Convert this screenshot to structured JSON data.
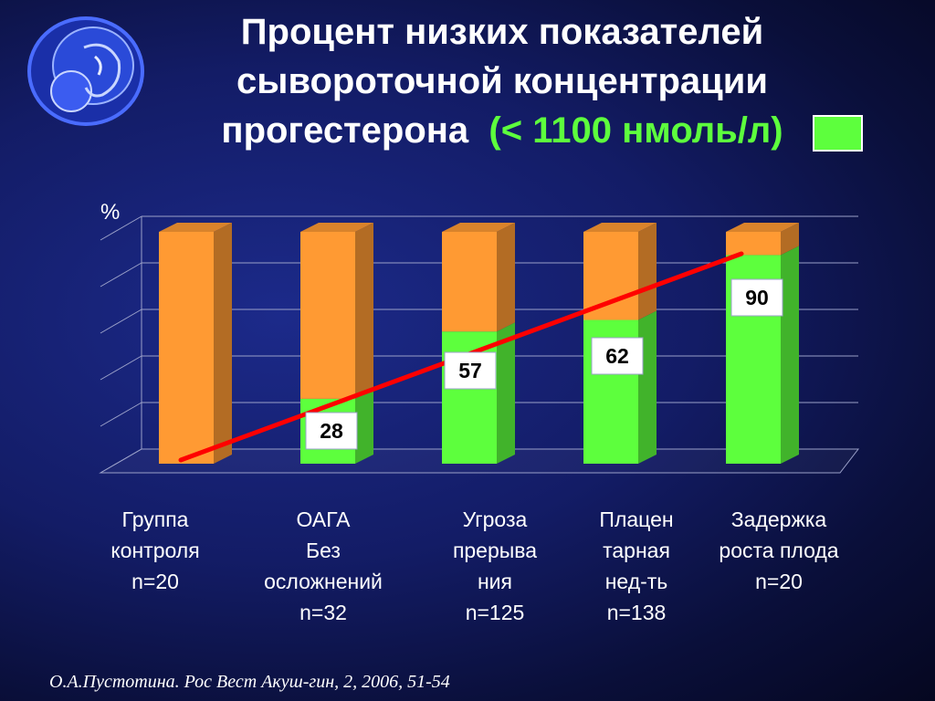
{
  "title": {
    "line1": "Процент низких показателей",
    "line2": "сывороточной концентрации",
    "line3_main": "прогестерона",
    "line3_highlight": "(< 1100 нмоль/л)"
  },
  "colors": {
    "low_progesterone": "#5dff3d",
    "remainder": "#ff9a33",
    "trend": "#ff0000"
  },
  "chart_data": {
    "type": "bar",
    "stacked": true,
    "ylabel": "%",
    "ylim": [
      0,
      100
    ],
    "grid": true,
    "categories": [
      "Группа\nконтроля\nn=20",
      "ОАГА\nБез\nосложнений\nn=32",
      "Угроза\nпрерыва\nния\nn=125",
      "Плацен\nтарная\nнед-ть\nn=138",
      "Задержка\nроста плода\nn=20"
    ],
    "series": [
      {
        "name": "(< 1100 нмоль/л)",
        "values": [
          0,
          28,
          57,
          62,
          90
        ],
        "color": "#5dff3d"
      },
      {
        "name": "",
        "values": [
          100,
          72,
          43,
          38,
          10
        ],
        "color": "#ff9a33"
      }
    ],
    "data_labels": [
      "28",
      "57",
      "62",
      "90"
    ],
    "trend_line": true
  },
  "citation": "О.А.Пустотина. Рос Вест Акуш-гин, 2, 2006, 51-54"
}
